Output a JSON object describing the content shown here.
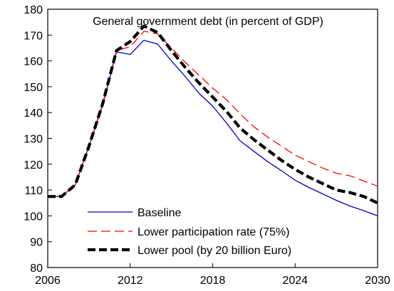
{
  "chart_data": {
    "type": "line",
    "title": "General government debt (in percent of GDP)",
    "xlabel": "",
    "ylabel": "",
    "xlim": [
      2006,
      2030
    ],
    "ylim": [
      80,
      180
    ],
    "x_ticks": [
      2006,
      2012,
      2018,
      2024,
      2030
    ],
    "y_ticks": [
      80,
      90,
      100,
      110,
      120,
      130,
      140,
      150,
      160,
      170,
      180
    ],
    "grid": false,
    "legend_position": "bottom-center",
    "x": [
      2006,
      2007,
      2008,
      2009,
      2010,
      2011,
      2012,
      2013,
      2014,
      2015,
      2016,
      2017,
      2018,
      2019,
      2020,
      2021,
      2022,
      2023,
      2024,
      2025,
      2026,
      2027,
      2028,
      2029,
      2030
    ],
    "series": [
      {
        "name": "Baseline",
        "color": "#0000cc",
        "dash": "solid",
        "values": [
          107.5,
          107.5,
          112.0,
          127.0,
          143.0,
          163.5,
          162.5,
          168.0,
          166.5,
          160.0,
          154.0,
          147.5,
          142.5,
          136.0,
          129.0,
          125.0,
          121.0,
          117.5,
          113.8,
          111.0,
          108.5,
          106.0,
          103.8,
          102.0,
          100.0
        ]
      },
      {
        "name": "Lower participation rate (75%)",
        "color": "#ff0000",
        "dash": "long-dash",
        "values": [
          107.5,
          107.5,
          112.0,
          127.0,
          143.5,
          164.0,
          165.5,
          171.5,
          170.5,
          165.0,
          159.5,
          154.5,
          149.5,
          145.0,
          139.5,
          134.5,
          130.5,
          127.0,
          123.5,
          121.0,
          118.5,
          116.5,
          115.5,
          113.5,
          111.5
        ]
      },
      {
        "name": "Lower pool (by 20 billion Euro)",
        "color": "#000000",
        "dash": "thick-dash",
        "values": [
          107.5,
          107.5,
          112.0,
          127.0,
          143.5,
          164.0,
          167.5,
          173.5,
          171.0,
          164.0,
          157.5,
          151.5,
          146.0,
          140.5,
          134.0,
          129.5,
          125.5,
          121.5,
          118.0,
          115.0,
          112.5,
          110.0,
          109.0,
          107.5,
          105.0
        ]
      }
    ]
  }
}
